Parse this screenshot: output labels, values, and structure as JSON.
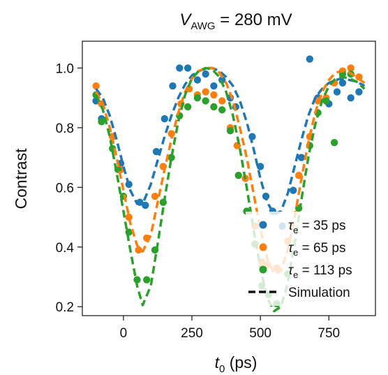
{
  "chart_data": {
    "type": "scatter",
    "title": {
      "var": "V",
      "sub": "AWG",
      "rest": " = 280 mV"
    },
    "xlabel": {
      "var": "t",
      "sub": "0",
      "rest": " (ps)"
    },
    "ylabel": "Contrast",
    "xlim": [
      -150,
      920
    ],
    "ylim": [
      0.17,
      1.09
    ],
    "xticks": [
      0,
      250,
      500,
      750
    ],
    "yticks": [
      0.2,
      0.4,
      0.6,
      0.8,
      1.0
    ],
    "ytick_labels": [
      "0.2",
      "0.4",
      "0.6",
      "0.8",
      "1.0"
    ],
    "grid": false,
    "legend_position": "bottom-right",
    "series": [
      {
        "name": {
          "var": "τ",
          "sub": "e",
          "rest": " = 35 ps"
        },
        "color": "#1f77b4",
        "points": [
          [
            -100,
            0.89
          ],
          [
            -80,
            0.83
          ],
          [
            -40,
            0.77
          ],
          [
            -10,
            0.68
          ],
          [
            20,
            0.61
          ],
          [
            60,
            0.55
          ],
          [
            80,
            0.54
          ],
          [
            120,
            0.72
          ],
          [
            150,
            0.83
          ],
          [
            180,
            0.94
          ],
          [
            205,
            1.0
          ],
          [
            235,
            1.0
          ],
          [
            270,
            0.96
          ],
          [
            300,
            0.98
          ],
          [
            330,
            0.94
          ],
          [
            360,
            0.96
          ],
          [
            390,
            0.9
          ],
          [
            410,
            0.87
          ],
          [
            470,
            0.77
          ],
          [
            500,
            0.67
          ],
          [
            520,
            0.57
          ],
          [
            545,
            0.52
          ],
          [
            580,
            0.47
          ],
          [
            620,
            0.59
          ],
          [
            650,
            0.7
          ],
          [
            680,
            1.03
          ],
          [
            710,
            0.9
          ],
          [
            750,
            0.88
          ],
          [
            780,
            0.92
          ],
          [
            800,
            0.95
          ],
          [
            830,
            0.9
          ],
          [
            860,
            0.92
          ]
        ],
        "simulation": [
          [
            -100,
            0.93
          ],
          [
            -75,
            0.9
          ],
          [
            -50,
            0.84
          ],
          [
            -25,
            0.76
          ],
          [
            0,
            0.67
          ],
          [
            25,
            0.59
          ],
          [
            50,
            0.545
          ],
          [
            75,
            0.555
          ],
          [
            100,
            0.61
          ],
          [
            125,
            0.69
          ],
          [
            150,
            0.77
          ],
          [
            175,
            0.84
          ],
          [
            200,
            0.9
          ],
          [
            225,
            0.945
          ],
          [
            250,
            0.975
          ],
          [
            275,
            0.99
          ],
          [
            300,
            0.998
          ],
          [
            325,
            1.0
          ],
          [
            350,
            0.99
          ],
          [
            375,
            0.97
          ],
          [
            400,
            0.94
          ],
          [
            425,
            0.89
          ],
          [
            450,
            0.82
          ],
          [
            475,
            0.73
          ],
          [
            500,
            0.63
          ],
          [
            525,
            0.55
          ],
          [
            550,
            0.51
          ],
          [
            575,
            0.52
          ],
          [
            600,
            0.58
          ],
          [
            625,
            0.67
          ],
          [
            650,
            0.76
          ],
          [
            675,
            0.84
          ],
          [
            700,
            0.9
          ],
          [
            725,
            0.93
          ],
          [
            750,
            0.95
          ],
          [
            775,
            0.96
          ],
          [
            800,
            0.965
          ],
          [
            825,
            0.96
          ],
          [
            850,
            0.955
          ],
          [
            880,
            0.94
          ]
        ]
      },
      {
        "name": {
          "var": "τ",
          "sub": "e",
          "rest": " = 65 ps"
        },
        "color": "#ff7f0e",
        "points": [
          [
            -100,
            0.94
          ],
          [
            -80,
            0.88
          ],
          [
            -40,
            0.77
          ],
          [
            -10,
            0.66
          ],
          [
            20,
            0.5
          ],
          [
            55,
            0.39
          ],
          [
            85,
            0.43
          ],
          [
            115,
            0.57
          ],
          [
            145,
            0.67
          ],
          [
            175,
            0.78
          ],
          [
            210,
            0.88
          ],
          [
            240,
            0.93
          ],
          [
            270,
            0.91
          ],
          [
            300,
            0.92
          ],
          [
            330,
            0.91
          ],
          [
            360,
            0.89
          ],
          [
            390,
            0.8
          ],
          [
            415,
            0.74
          ],
          [
            445,
            0.63
          ],
          [
            480,
            0.47
          ],
          [
            505,
            0.35
          ],
          [
            525,
            0.34
          ],
          [
            560,
            0.33
          ],
          [
            600,
            0.42
          ],
          [
            640,
            0.64
          ],
          [
            680,
            0.77
          ],
          [
            710,
            0.89
          ],
          [
            740,
            0.9
          ],
          [
            770,
            0.95
          ],
          [
            800,
            0.99
          ],
          [
            830,
            1.0
          ],
          [
            860,
            0.97
          ]
        ],
        "simulation": [
          [
            -100,
            0.92
          ],
          [
            -75,
            0.88
          ],
          [
            -50,
            0.8
          ],
          [
            -25,
            0.7
          ],
          [
            0,
            0.59
          ],
          [
            25,
            0.48
          ],
          [
            50,
            0.405
          ],
          [
            70,
            0.385
          ],
          [
            100,
            0.44
          ],
          [
            125,
            0.55
          ],
          [
            150,
            0.66
          ],
          [
            175,
            0.76
          ],
          [
            200,
            0.85
          ],
          [
            225,
            0.92
          ],
          [
            250,
            0.965
          ],
          [
            275,
            0.99
          ],
          [
            300,
            1.0
          ],
          [
            325,
            1.0
          ],
          [
            350,
            0.985
          ],
          [
            375,
            0.95
          ],
          [
            400,
            0.89
          ],
          [
            425,
            0.8
          ],
          [
            450,
            0.7
          ],
          [
            475,
            0.58
          ],
          [
            500,
            0.46
          ],
          [
            525,
            0.36
          ],
          [
            550,
            0.31
          ],
          [
            575,
            0.32
          ],
          [
            600,
            0.39
          ],
          [
            625,
            0.5
          ],
          [
            650,
            0.63
          ],
          [
            675,
            0.75
          ],
          [
            700,
            0.85
          ],
          [
            725,
            0.92
          ],
          [
            750,
            0.96
          ],
          [
            775,
            0.985
          ],
          [
            800,
            0.99
          ],
          [
            825,
            0.985
          ],
          [
            850,
            0.97
          ],
          [
            880,
            0.95
          ]
        ]
      },
      {
        "name": {
          "var": "τ",
          "sub": "e",
          "rest": " = 113 ps"
        },
        "color": "#2ca02c",
        "points": [
          [
            -100,
            0.91
          ],
          [
            -80,
            0.82
          ],
          [
            -40,
            0.73
          ],
          [
            -20,
            0.66
          ],
          [
            0,
            0.57
          ],
          [
            20,
            0.45
          ],
          [
            50,
            0.29
          ],
          [
            85,
            0.29
          ],
          [
            115,
            0.39
          ],
          [
            145,
            0.55
          ],
          [
            175,
            0.7
          ],
          [
            205,
            0.84
          ],
          [
            235,
            0.87
          ],
          [
            270,
            0.9
          ],
          [
            300,
            0.89
          ],
          [
            330,
            0.87
          ],
          [
            360,
            0.86
          ],
          [
            390,
            0.79
          ],
          [
            420,
            0.64
          ],
          [
            450,
            0.52
          ],
          [
            480,
            0.41
          ],
          [
            505,
            0.27
          ],
          [
            530,
            0.24
          ],
          [
            560,
            0.21
          ],
          [
            600,
            0.31
          ],
          [
            640,
            0.53
          ],
          [
            680,
            0.74
          ],
          [
            710,
            0.85
          ],
          [
            740,
            0.89
          ],
          [
            770,
            0.75
          ],
          [
            800,
            0.98
          ],
          [
            830,
            0.98
          ]
        ],
        "simulation": [
          [
            -100,
            0.91
          ],
          [
            -75,
            0.86
          ],
          [
            -50,
            0.77
          ],
          [
            -25,
            0.65
          ],
          [
            0,
            0.52
          ],
          [
            25,
            0.39
          ],
          [
            50,
            0.27
          ],
          [
            70,
            0.205
          ],
          [
            100,
            0.27
          ],
          [
            125,
            0.41
          ],
          [
            150,
            0.56
          ],
          [
            175,
            0.7
          ],
          [
            200,
            0.82
          ],
          [
            225,
            0.91
          ],
          [
            250,
            0.965
          ],
          [
            275,
            0.99
          ],
          [
            300,
            1.0
          ],
          [
            325,
            0.995
          ],
          [
            350,
            0.97
          ],
          [
            375,
            0.92
          ],
          [
            400,
            0.84
          ],
          [
            425,
            0.73
          ],
          [
            450,
            0.6
          ],
          [
            475,
            0.46
          ],
          [
            500,
            0.33
          ],
          [
            525,
            0.23
          ],
          [
            550,
            0.185
          ],
          [
            575,
            0.2
          ],
          [
            600,
            0.28
          ],
          [
            625,
            0.41
          ],
          [
            650,
            0.56
          ],
          [
            675,
            0.7
          ],
          [
            700,
            0.81
          ],
          [
            725,
            0.89
          ],
          [
            750,
            0.94
          ],
          [
            775,
            0.965
          ],
          [
            800,
            0.97
          ],
          [
            825,
            0.965
          ],
          [
            850,
            0.955
          ],
          [
            880,
            0.93
          ]
        ]
      }
    ],
    "simulation_label": "Simulation",
    "simulation_color": "#111111"
  }
}
